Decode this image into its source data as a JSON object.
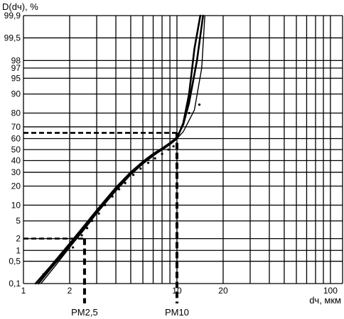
{
  "chart_data": {
    "type": "line",
    "x_scale": "log",
    "y_scale": "probability",
    "ylabel": "D(dч), %",
    "xlabel": "dч, мкм",
    "xlim": [
      1,
      120
    ],
    "ylim": [
      0.1,
      99.9
    ],
    "grid": true,
    "x_ticks": [
      {
        "value": 1,
        "label": "1"
      },
      {
        "value": 2,
        "label": "2"
      },
      {
        "value": 3,
        "label": ""
      },
      {
        "value": 4,
        "label": ""
      },
      {
        "value": 5,
        "label": ""
      },
      {
        "value": 6,
        "label": ""
      },
      {
        "value": 7,
        "label": ""
      },
      {
        "value": 8,
        "label": ""
      },
      {
        "value": 9,
        "label": ""
      },
      {
        "value": 10,
        "label": "10"
      },
      {
        "value": 20,
        "label": "20"
      },
      {
        "value": 30,
        "label": ""
      },
      {
        "value": 40,
        "label": ""
      },
      {
        "value": 50,
        "label": ""
      },
      {
        "value": 60,
        "label": ""
      },
      {
        "value": 70,
        "label": ""
      },
      {
        "value": 80,
        "label": ""
      },
      {
        "value": 90,
        "label": ""
      },
      {
        "value": 100,
        "label": "100"
      }
    ],
    "y_ticks": [
      {
        "value": 0.1,
        "label": "0,1"
      },
      {
        "value": 0.5,
        "label": "0,5"
      },
      {
        "value": 1,
        "label": "1"
      },
      {
        "value": 2,
        "label": "2"
      },
      {
        "value": 5,
        "label": "5"
      },
      {
        "value": 10,
        "label": "10"
      },
      {
        "value": 20,
        "label": "20"
      },
      {
        "value": 30,
        "label": "30"
      },
      {
        "value": 40,
        "label": "40"
      },
      {
        "value": 50,
        "label": "50"
      },
      {
        "value": 60,
        "label": "60"
      },
      {
        "value": 70,
        "label": "70"
      },
      {
        "value": 80,
        "label": "80"
      },
      {
        "value": 90,
        "label": "90"
      },
      {
        "value": 95,
        "label": "95"
      },
      {
        "value": 97,
        "label": "97"
      },
      {
        "value": 98,
        "label": "98"
      },
      {
        "value": 99.5,
        "label": "99,5"
      },
      {
        "value": 99.9,
        "label": "99,9"
      }
    ],
    "series": [
      {
        "x": [
          1.25,
          1.5,
          2,
          2.5,
          3,
          4,
          5,
          6,
          7,
          8,
          9,
          10,
          11,
          12,
          13,
          14.2
        ],
        "y": [
          0.1,
          0.3,
          1.3,
          3.6,
          7.5,
          18,
          29,
          38,
          45,
          50,
          55,
          60,
          73,
          90,
          99,
          99.9
        ]
      },
      {
        "x": [
          1.2,
          1.5,
          2,
          2.5,
          3,
          4,
          5,
          6,
          7,
          8,
          9,
          10,
          11,
          12,
          13.5,
          14.8
        ],
        "y": [
          0.1,
          0.35,
          1.5,
          4,
          8,
          19,
          30,
          39,
          46,
          51,
          56,
          61,
          72,
          86,
          98,
          99.9
        ]
      },
      {
        "x": [
          1.3,
          1.6,
          2,
          2.5,
          3,
          4,
          5,
          6,
          7,
          8,
          9,
          10,
          11,
          13,
          14.5,
          15.2
        ],
        "y": [
          0.1,
          0.35,
          1.2,
          3.3,
          7,
          17,
          28,
          37,
          44,
          50,
          55,
          60,
          66,
          82,
          97,
          99.9
        ]
      }
    ],
    "points": [
      {
        "x": 1.35,
        "y": 0.2
      },
      {
        "x": 1.8,
        "y": 0.8
      },
      {
        "x": 2.1,
        "y": 1.2
      },
      {
        "x": 2.4,
        "y": 2.4
      },
      {
        "x": 2.6,
        "y": 3.5
      },
      {
        "x": 2.8,
        "y": 5
      },
      {
        "x": 3.1,
        "y": 7
      },
      {
        "x": 3.4,
        "y": 10
      },
      {
        "x": 3.8,
        "y": 14
      },
      {
        "x": 4.2,
        "y": 18
      },
      {
        "x": 4.6,
        "y": 22
      },
      {
        "x": 5.2,
        "y": 28
      },
      {
        "x": 5.8,
        "y": 33
      },
      {
        "x": 6.5,
        "y": 38
      },
      {
        "x": 7.2,
        "y": 42
      },
      {
        "x": 8,
        "y": 46
      },
      {
        "x": 8.8,
        "y": 50
      },
      {
        "x": 9.5,
        "y": 53
      },
      {
        "x": 12,
        "y": 80
      },
      {
        "x": 14,
        "y": 85
      }
    ],
    "annotations": [
      {
        "label": "PM2,5",
        "x": 2.5,
        "y": 2
      },
      {
        "label": "PM10",
        "x": 10,
        "y": 65
      }
    ]
  }
}
